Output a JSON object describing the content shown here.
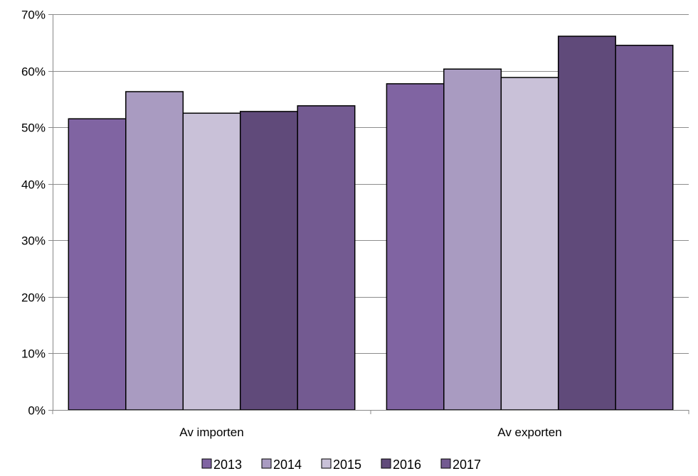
{
  "chart_data": {
    "type": "bar",
    "title": "",
    "xlabel": "",
    "ylabel": "",
    "categories": [
      "Av importen",
      "Av exporten"
    ],
    "series": [
      {
        "name": "2013",
        "values": [
          51.5,
          57.7
        ],
        "color": "#8064a2"
      },
      {
        "name": "2014",
        "values": [
          56.3,
          60.3
        ],
        "color": "#a99bc1"
      },
      {
        "name": "2015",
        "values": [
          52.5,
          58.8
        ],
        "color": "#c9c1d8"
      },
      {
        "name": "2016",
        "values": [
          52.8,
          66.1
        ],
        "color": "#604a7a"
      },
      {
        "name": "2017",
        "values": [
          53.8,
          64.5
        ],
        "color": "#735a91"
      }
    ],
    "ylim": [
      0,
      70
    ],
    "yticks": [
      0,
      10,
      20,
      30,
      40,
      50,
      60,
      70
    ],
    "ytick_labels": [
      "0%",
      "10%",
      "20%",
      "30%",
      "40%",
      "50%",
      "60%",
      "70%"
    ],
    "grid": true,
    "legend": "bottom"
  }
}
